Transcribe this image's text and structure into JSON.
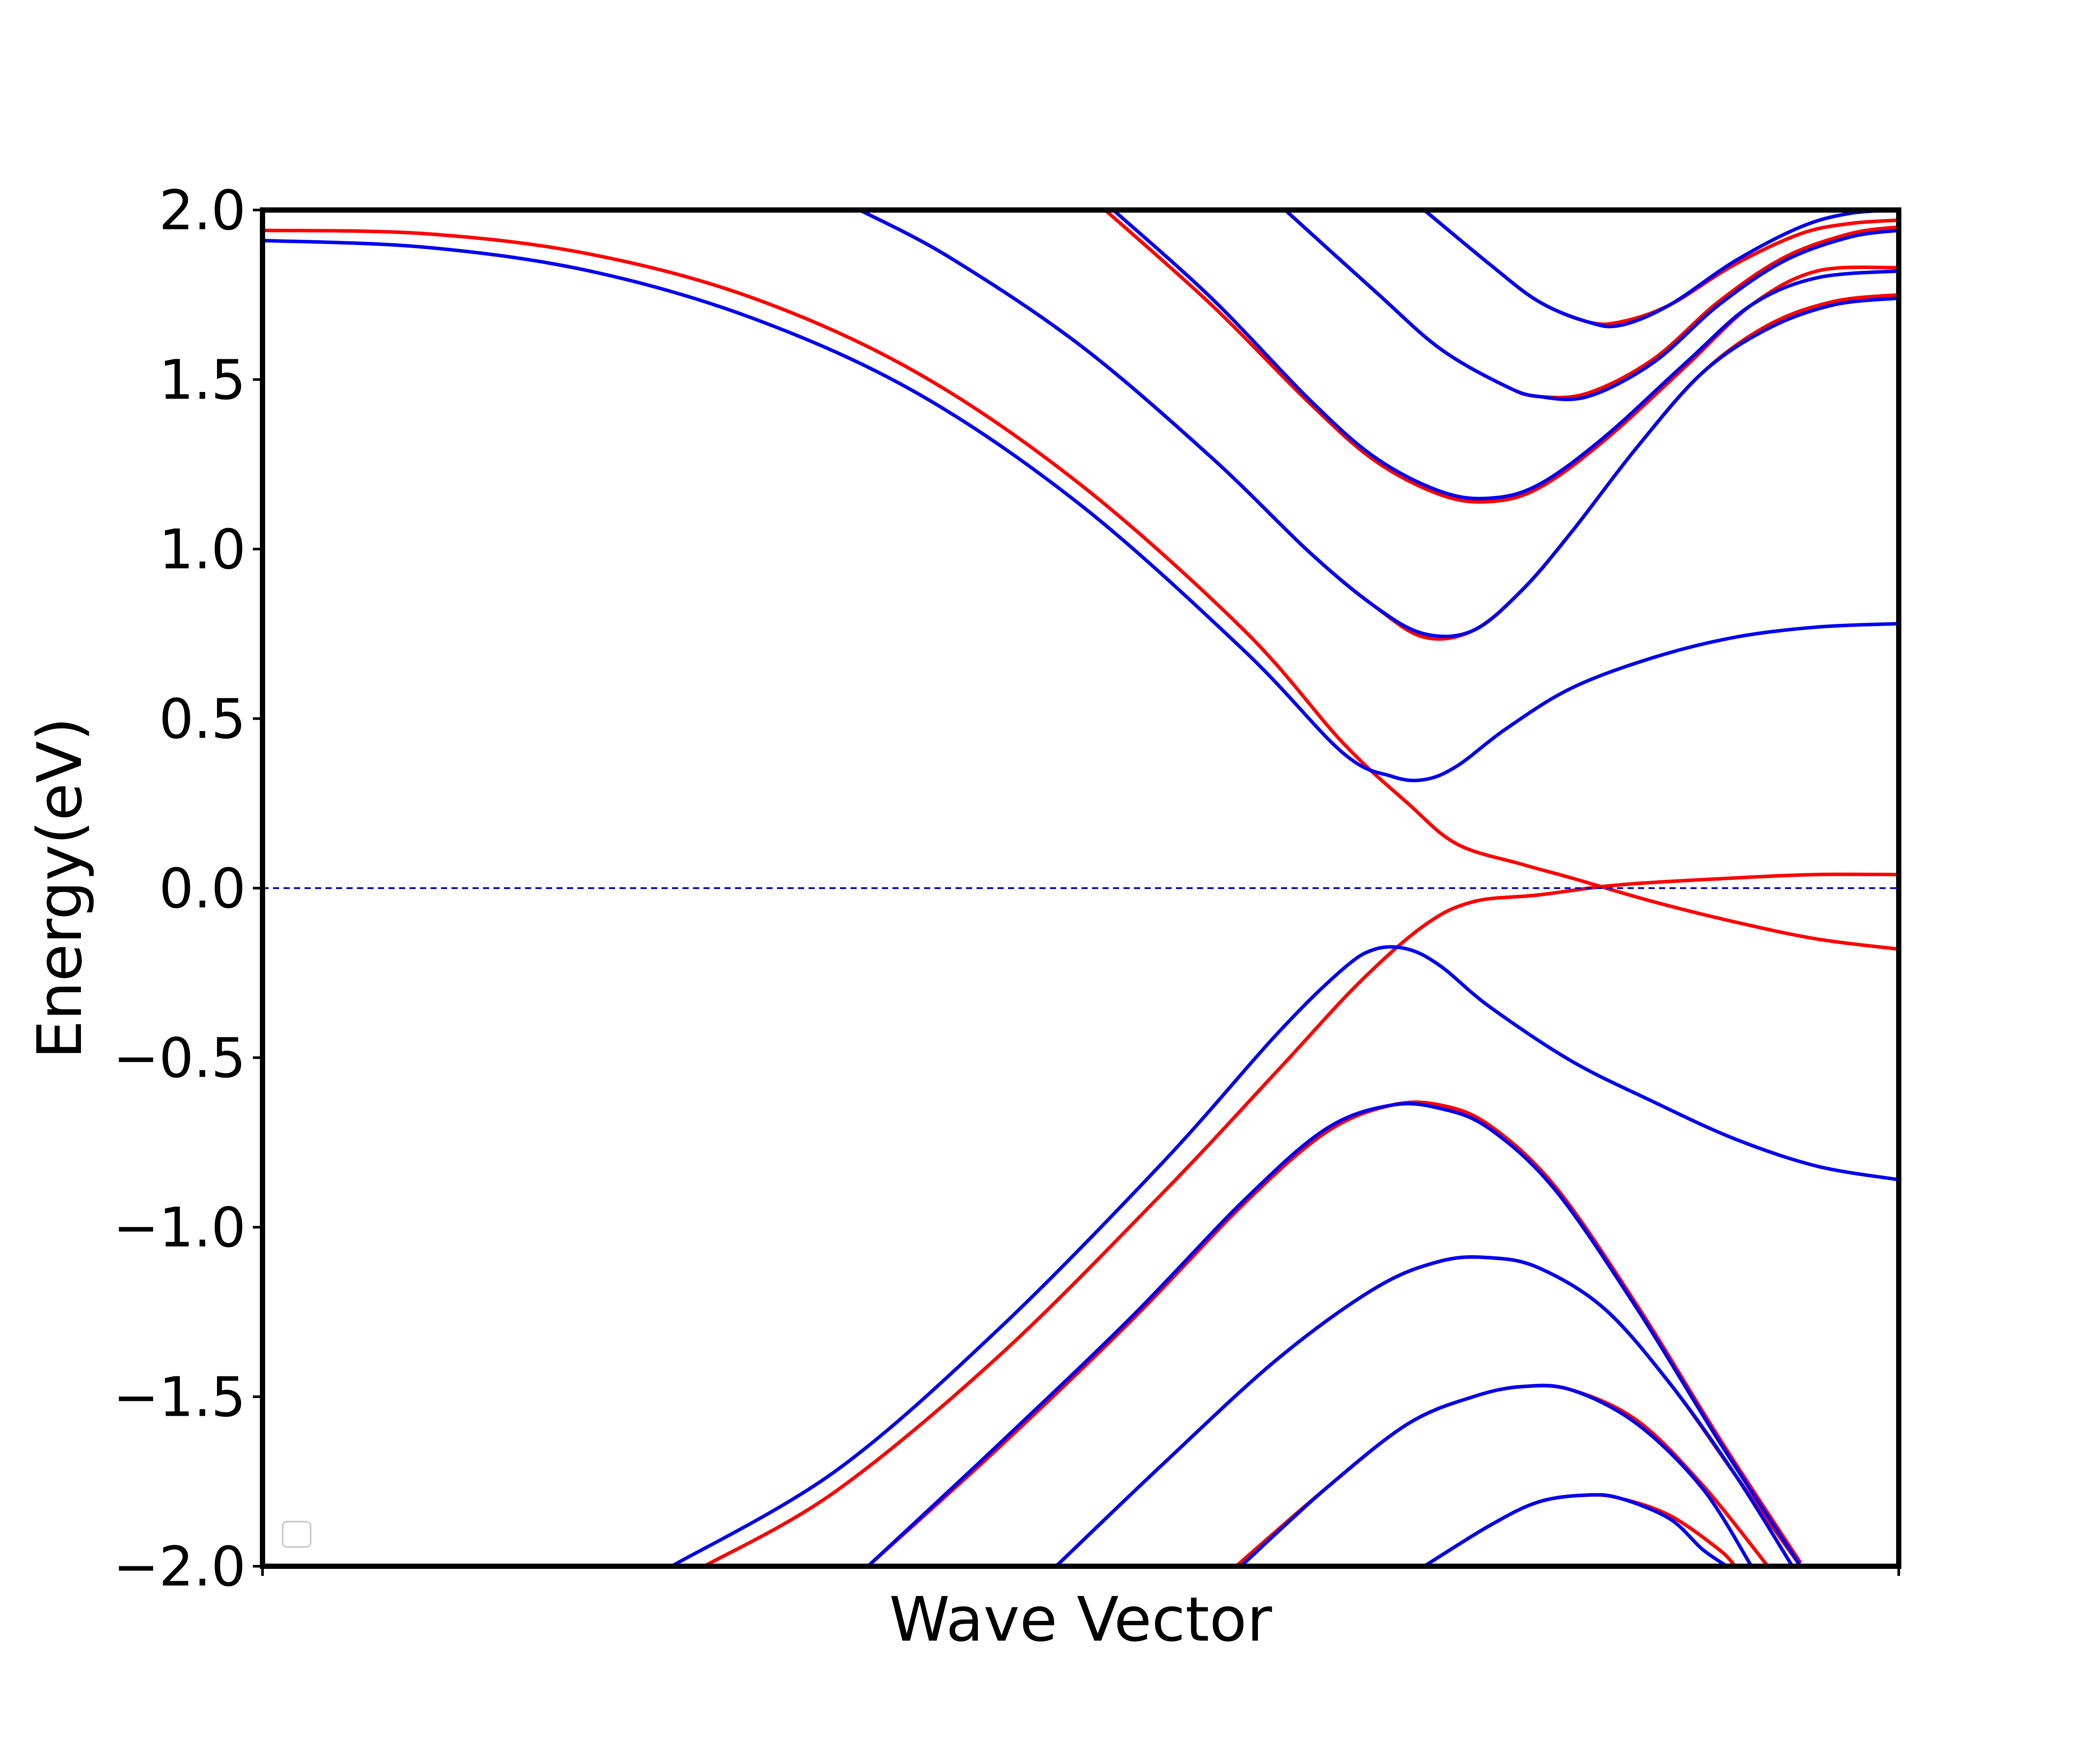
{
  "chart_data": {
    "type": "line",
    "title": "",
    "xlabel": "Wave Vector",
    "ylabel": "Energy(eV)",
    "xlim": [
      0,
      1
    ],
    "ylim": [
      -2.0,
      2.0
    ],
    "yticks": [
      2.0,
      1.5,
      1.0,
      0.5,
      0.0,
      -0.5,
      -1.0,
      -1.5,
      -2.0
    ],
    "ytick_labels": [
      "2.0",
      "1.5",
      "1.0",
      "0.5",
      "0.0",
      "−0.5",
      "−1.0",
      "−1.5",
      "−2.0"
    ],
    "xticks": [
      0,
      1
    ],
    "fermi_level": {
      "y": 0.0,
      "color": "#0000cc",
      "style": "dashed"
    },
    "legend": {
      "placement": "lower-left",
      "entries": []
    },
    "colors": {
      "red": "#ff0000",
      "blue": "#0000ee"
    },
    "series": [
      {
        "name": "red-band-1",
        "color": "#ff0000",
        "points": [
          [
            0,
            1.94
          ],
          [
            0.1,
            1.93
          ],
          [
            0.2,
            1.87
          ],
          [
            0.3,
            1.74
          ],
          [
            0.4,
            1.52
          ],
          [
            0.5,
            1.19
          ],
          [
            0.6,
            0.76
          ],
          [
            0.66,
            0.43
          ],
          [
            0.7,
            0.25
          ],
          [
            0.73,
            0.13
          ],
          [
            0.77,
            0.07
          ],
          [
            0.8,
            0.03
          ],
          [
            0.85,
            -0.04
          ],
          [
            0.9,
            -0.1
          ],
          [
            0.95,
            -0.15
          ],
          [
            1,
            -0.18
          ]
        ]
      },
      {
        "name": "red-band-2",
        "color": "#ff0000",
        "points": [
          [
            0.27,
            -2.0
          ],
          [
            0.35,
            -1.78
          ],
          [
            0.45,
            -1.38
          ],
          [
            0.55,
            -0.9
          ],
          [
            0.62,
            -0.54
          ],
          [
            0.67,
            -0.28
          ],
          [
            0.71,
            -0.11
          ],
          [
            0.74,
            -0.04
          ],
          [
            0.78,
            -0.02
          ],
          [
            0.83,
            0.01
          ],
          [
            0.9,
            0.03
          ],
          [
            0.95,
            0.04
          ],
          [
            1,
            0.04
          ]
        ]
      },
      {
        "name": "red-band-3",
        "color": "#ff0000",
        "points": [
          [
            0.365,
            2.0
          ],
          [
            0.42,
            1.86
          ],
          [
            0.5,
            1.6
          ],
          [
            0.58,
            1.27
          ],
          [
            0.64,
            0.99
          ],
          [
            0.68,
            0.83
          ],
          [
            0.71,
            0.74
          ],
          [
            0.74,
            0.76
          ],
          [
            0.77,
            0.88
          ],
          [
            0.8,
            1.05
          ],
          [
            0.84,
            1.3
          ],
          [
            0.88,
            1.52
          ],
          [
            0.92,
            1.66
          ],
          [
            0.96,
            1.73
          ],
          [
            1,
            1.75
          ]
        ]
      },
      {
        "name": "red-band-4",
        "color": "#ff0000",
        "points": [
          [
            0.515,
            2.0
          ],
          [
            0.58,
            1.72
          ],
          [
            0.64,
            1.43
          ],
          [
            0.68,
            1.26
          ],
          [
            0.72,
            1.16
          ],
          [
            0.75,
            1.14
          ],
          [
            0.78,
            1.18
          ],
          [
            0.82,
            1.32
          ],
          [
            0.87,
            1.54
          ],
          [
            0.91,
            1.72
          ],
          [
            0.95,
            1.82
          ],
          [
            1,
            1.83
          ]
        ]
      },
      {
        "name": "red-band-5",
        "color": "#ff0000",
        "points": [
          [
            0.625,
            2.0
          ],
          [
            0.68,
            1.76
          ],
          [
            0.72,
            1.59
          ],
          [
            0.76,
            1.48
          ],
          [
            0.78,
            1.45
          ],
          [
            0.81,
            1.46
          ],
          [
            0.85,
            1.56
          ],
          [
            0.89,
            1.73
          ],
          [
            0.93,
            1.86
          ],
          [
            0.97,
            1.93
          ],
          [
            1,
            1.95
          ]
        ]
      },
      {
        "name": "red-band-6",
        "color": "#ff0000",
        "points": [
          [
            0.71,
            2.0
          ],
          [
            0.75,
            1.84
          ],
          [
            0.78,
            1.73
          ],
          [
            0.81,
            1.67
          ],
          [
            0.83,
            1.67
          ],
          [
            0.86,
            1.72
          ],
          [
            0.9,
            1.84
          ],
          [
            0.94,
            1.93
          ],
          [
            0.97,
            1.96
          ],
          [
            1,
            1.97
          ]
        ]
      },
      {
        "name": "red-band-7",
        "color": "#ff0000",
        "points": [
          [
            0.37,
            -2.0
          ],
          [
            0.45,
            -1.65
          ],
          [
            0.53,
            -1.28
          ],
          [
            0.6,
            -0.93
          ],
          [
            0.65,
            -0.72
          ],
          [
            0.69,
            -0.64
          ],
          [
            0.72,
            -0.64
          ],
          [
            0.75,
            -0.7
          ],
          [
            0.79,
            -0.88
          ],
          [
            0.84,
            -1.23
          ],
          [
            0.89,
            -1.62
          ],
          [
            0.94,
            -1.99
          ]
        ]
      },
      {
        "name": "red-band-8",
        "color": "#ff0000",
        "points": [
          [
            0.485,
            -2.0
          ],
          [
            0.55,
            -1.7
          ],
          [
            0.62,
            -1.39
          ],
          [
            0.68,
            -1.18
          ],
          [
            0.72,
            -1.1
          ],
          [
            0.75,
            -1.09
          ],
          [
            0.78,
            -1.12
          ],
          [
            0.82,
            -1.24
          ],
          [
            0.86,
            -1.46
          ],
          [
            0.9,
            -1.73
          ],
          [
            0.94,
            -2.0
          ]
        ]
      },
      {
        "name": "red-band-9",
        "color": "#ff0000",
        "points": [
          [
            0.595,
            -2.0
          ],
          [
            0.65,
            -1.77
          ],
          [
            0.7,
            -1.58
          ],
          [
            0.74,
            -1.5
          ],
          [
            0.77,
            -1.47
          ],
          [
            0.8,
            -1.48
          ],
          [
            0.84,
            -1.57
          ],
          [
            0.88,
            -1.76
          ],
          [
            0.92,
            -2.0
          ]
        ]
      },
      {
        "name": "red-band-10",
        "color": "#ff0000",
        "points": [
          [
            0.71,
            -2.0
          ],
          [
            0.75,
            -1.88
          ],
          [
            0.78,
            -1.81
          ],
          [
            0.81,
            -1.79
          ],
          [
            0.83,
            -1.8
          ],
          [
            0.86,
            -1.85
          ],
          [
            0.89,
            -1.95
          ],
          [
            0.9,
            -2.0
          ]
        ]
      },
      {
        "name": "blue-band-1",
        "color": "#0000ee",
        "points": [
          [
            0,
            1.91
          ],
          [
            0.1,
            1.89
          ],
          [
            0.2,
            1.82
          ],
          [
            0.3,
            1.68
          ],
          [
            0.4,
            1.46
          ],
          [
            0.5,
            1.13
          ],
          [
            0.6,
            0.7
          ],
          [
            0.66,
            0.4
          ],
          [
            0.69,
            0.33
          ],
          [
            0.71,
            0.32
          ],
          [
            0.73,
            0.36
          ],
          [
            0.76,
            0.47
          ],
          [
            0.8,
            0.59
          ],
          [
            0.85,
            0.68
          ],
          [
            0.9,
            0.74
          ],
          [
            0.95,
            0.77
          ],
          [
            1,
            0.78
          ]
        ]
      },
      {
        "name": "blue-band-2",
        "color": "#0000ee",
        "points": [
          [
            0.25,
            -2.0
          ],
          [
            0.35,
            -1.72
          ],
          [
            0.45,
            -1.3
          ],
          [
            0.55,
            -0.81
          ],
          [
            0.62,
            -0.43
          ],
          [
            0.66,
            -0.24
          ],
          [
            0.68,
            -0.18
          ],
          [
            0.7,
            -0.18
          ],
          [
            0.72,
            -0.23
          ],
          [
            0.75,
            -0.35
          ],
          [
            0.8,
            -0.51
          ],
          [
            0.85,
            -0.63
          ],
          [
            0.9,
            -0.74
          ],
          [
            0.95,
            -0.82
          ],
          [
            1,
            -0.86
          ]
        ]
      },
      {
        "name": "blue-band-3",
        "color": "#0000ee",
        "points": [
          [
            0.365,
            2.0
          ],
          [
            0.42,
            1.86
          ],
          [
            0.5,
            1.6
          ],
          [
            0.58,
            1.27
          ],
          [
            0.64,
            0.99
          ],
          [
            0.68,
            0.83
          ],
          [
            0.71,
            0.75
          ],
          [
            0.74,
            0.76
          ],
          [
            0.77,
            0.88
          ],
          [
            0.8,
            1.05
          ],
          [
            0.84,
            1.3
          ],
          [
            0.88,
            1.52
          ],
          [
            0.92,
            1.65
          ],
          [
            0.96,
            1.72
          ],
          [
            1,
            1.74
          ]
        ]
      },
      {
        "name": "blue-band-4",
        "color": "#0000ee",
        "points": [
          [
            0.52,
            2.0
          ],
          [
            0.58,
            1.74
          ],
          [
            0.64,
            1.44
          ],
          [
            0.68,
            1.27
          ],
          [
            0.72,
            1.17
          ],
          [
            0.75,
            1.15
          ],
          [
            0.78,
            1.19
          ],
          [
            0.82,
            1.33
          ],
          [
            0.87,
            1.55
          ],
          [
            0.91,
            1.72
          ],
          [
            0.95,
            1.8
          ],
          [
            1,
            1.82
          ]
        ]
      },
      {
        "name": "blue-band-5",
        "color": "#0000ee",
        "points": [
          [
            0.625,
            2.0
          ],
          [
            0.68,
            1.76
          ],
          [
            0.72,
            1.59
          ],
          [
            0.76,
            1.48
          ],
          [
            0.78,
            1.45
          ],
          [
            0.81,
            1.45
          ],
          [
            0.85,
            1.55
          ],
          [
            0.89,
            1.72
          ],
          [
            0.93,
            1.85
          ],
          [
            0.97,
            1.92
          ],
          [
            1,
            1.94
          ]
        ]
      },
      {
        "name": "blue-band-6",
        "color": "#0000ee",
        "points": [
          [
            0.71,
            2.0
          ],
          [
            0.75,
            1.84
          ],
          [
            0.78,
            1.73
          ],
          [
            0.81,
            1.67
          ],
          [
            0.83,
            1.66
          ],
          [
            0.86,
            1.72
          ],
          [
            0.9,
            1.85
          ],
          [
            0.94,
            1.95
          ],
          [
            0.97,
            1.99
          ],
          [
            1,
            2.0
          ]
        ]
      },
      {
        "name": "blue-band-7",
        "color": "#0000ee",
        "points": [
          [
            0.37,
            -2.0
          ],
          [
            0.45,
            -1.64
          ],
          [
            0.53,
            -1.27
          ],
          [
            0.6,
            -0.92
          ],
          [
            0.65,
            -0.71
          ],
          [
            0.69,
            -0.64
          ],
          [
            0.72,
            -0.65
          ],
          [
            0.75,
            -0.71
          ],
          [
            0.79,
            -0.89
          ],
          [
            0.84,
            -1.24
          ],
          [
            0.89,
            -1.63
          ],
          [
            0.94,
            -2.0
          ]
        ]
      },
      {
        "name": "blue-band-8",
        "color": "#0000ee",
        "points": [
          [
            0.485,
            -2.0
          ],
          [
            0.55,
            -1.7
          ],
          [
            0.62,
            -1.39
          ],
          [
            0.68,
            -1.18
          ],
          [
            0.72,
            -1.1
          ],
          [
            0.75,
            -1.09
          ],
          [
            0.78,
            -1.12
          ],
          [
            0.82,
            -1.24
          ],
          [
            0.86,
            -1.46
          ],
          [
            0.9,
            -1.73
          ],
          [
            0.935,
            -2.0
          ]
        ]
      },
      {
        "name": "blue-band-9",
        "color": "#0000ee",
        "points": [
          [
            0.598,
            -2.0
          ],
          [
            0.65,
            -1.77
          ],
          [
            0.7,
            -1.58
          ],
          [
            0.74,
            -1.5
          ],
          [
            0.77,
            -1.47
          ],
          [
            0.8,
            -1.48
          ],
          [
            0.84,
            -1.58
          ],
          [
            0.88,
            -1.77
          ],
          [
            0.91,
            -2.0
          ]
        ]
      },
      {
        "name": "blue-band-10",
        "color": "#0000ee",
        "points": [
          [
            0.71,
            -2.0
          ],
          [
            0.75,
            -1.88
          ],
          [
            0.78,
            -1.81
          ],
          [
            0.81,
            -1.79
          ],
          [
            0.83,
            -1.8
          ],
          [
            0.86,
            -1.86
          ],
          [
            0.88,
            -1.95
          ],
          [
            0.895,
            -2.0
          ]
        ]
      }
    ]
  }
}
